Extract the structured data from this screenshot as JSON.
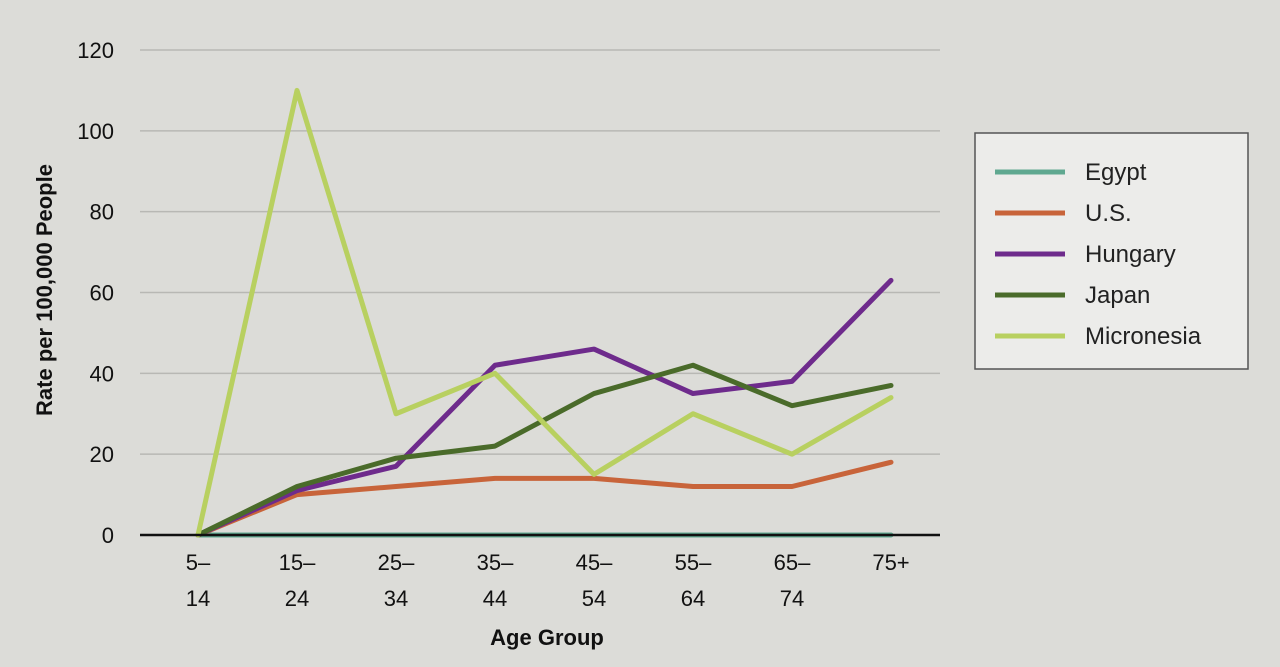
{
  "chart_data": {
    "type": "line",
    "title": "",
    "xlabel": "Age Group",
    "ylabel": "Rate per 100,000 People",
    "ylim": [
      0,
      120
    ],
    "yticks": [
      0,
      20,
      40,
      60,
      80,
      100,
      120
    ],
    "grid": true,
    "legend_position": "right",
    "categories": [
      {
        "top": "5–",
        "bottom": "14"
      },
      {
        "top": "15–",
        "bottom": "24"
      },
      {
        "top": "25–",
        "bottom": "34"
      },
      {
        "top": "35–",
        "bottom": "44"
      },
      {
        "top": "45–",
        "bottom": "54"
      },
      {
        "top": "55–",
        "bottom": "64"
      },
      {
        "top": "65–",
        "bottom": "74"
      },
      {
        "top": "75+",
        "bottom": ""
      }
    ],
    "series": [
      {
        "name": "Egypt",
        "color": "#5fa890",
        "dash": "",
        "values": [
          0,
          0,
          0,
          0,
          0,
          0,
          0,
          0
        ]
      },
      {
        "name": "U.S.",
        "color": "#c8643a",
        "dash": "",
        "values": [
          0,
          10,
          12,
          14,
          14,
          12,
          12,
          18
        ]
      },
      {
        "name": "Hungary",
        "color": "#6e2b8c",
        "dash": "",
        "values": [
          0,
          11,
          17,
          42,
          46,
          35,
          38,
          63
        ]
      },
      {
        "name": "Japan",
        "color": "#4a6b2a",
        "dash": "",
        "values": [
          0,
          12,
          19,
          22,
          35,
          42,
          32,
          37
        ]
      },
      {
        "name": "Micronesia",
        "color": "#b8d060",
        "dash": "",
        "values": [
          0,
          110,
          30,
          40,
          15,
          30,
          20,
          34
        ]
      }
    ]
  }
}
